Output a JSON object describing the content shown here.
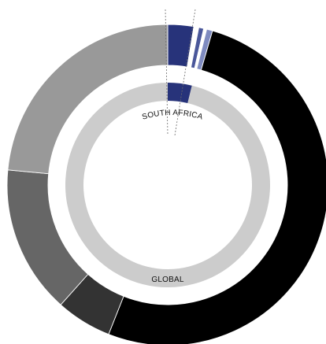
{
  "chart_data": {
    "type": "pie",
    "variant": "nested-donut",
    "rings": [
      {
        "id": "outer",
        "label": "GLOBAL",
        "segments": [
          {
            "value": 2.6,
            "color": "#27337a"
          },
          {
            "value": 0.5,
            "color": "#ffffff"
          },
          {
            "value": 0.5,
            "color": "#4a579a"
          },
          {
            "value": 0.3,
            "color": "#ffffff"
          },
          {
            "value": 0.6,
            "color": "#7f8bc0"
          },
          {
            "value": 51.5,
            "color": "#000000"
          },
          {
            "value": 5.6,
            "color": "#333333"
          },
          {
            "value": 14.9,
            "color": "#666666"
          },
          {
            "value": 23.5,
            "color": "#999999"
          }
        ]
      },
      {
        "id": "inner",
        "label": "SOUTH AFRICA",
        "segments": [
          {
            "value": 3.8,
            "color": "#27337a"
          },
          {
            "value": 96.2,
            "color": "#cccccc"
          }
        ]
      }
    ]
  }
}
